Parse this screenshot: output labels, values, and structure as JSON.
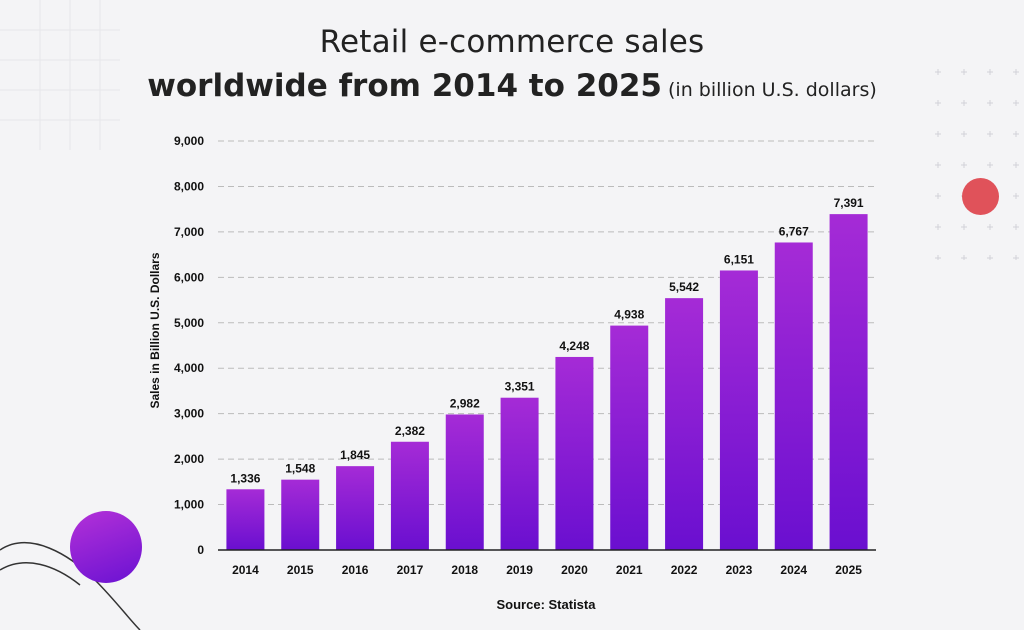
{
  "title_line1": "Retail e-commerce sales",
  "title_line2": "worldwide from 2014 to 2025",
  "title_unit": "(in billion U.S. dollars)",
  "source": "Source: Statista",
  "colors": {
    "bar_top": "#a52bd6",
    "bar_bottom": "#6a0fd0",
    "grid": "#bbbbbb",
    "accent_circle": "#e0525a",
    "background": "#f4f4f6"
  },
  "chart_data": {
    "type": "bar",
    "title": "Retail e-commerce sales worldwide from 2014 to 2025",
    "xlabel": "",
    "ylabel": "Sales in Billion U.S. Dollars",
    "ylim": [
      0,
      9000
    ],
    "yticks": [
      "0",
      "1,000",
      "2,000",
      "3,000",
      "4,000",
      "5,000",
      "6,000",
      "7,000",
      "8,000",
      "9,000"
    ],
    "grid": true,
    "categories": [
      "2014",
      "2015",
      "2016",
      "2017",
      "2018",
      "2019",
      "2020",
      "2021",
      "2022",
      "2023",
      "2024",
      "2025"
    ],
    "values": [
      1336,
      1548,
      1845,
      2382,
      2982,
      3351,
      4248,
      4938,
      5542,
      6151,
      6767,
      7391
    ],
    "value_labels": [
      "1,336",
      "1,548",
      "1,845",
      "2,382",
      "2,982",
      "3,351",
      "4,248",
      "4,938",
      "5,542",
      "6,151",
      "6,767",
      "7,391"
    ]
  }
}
